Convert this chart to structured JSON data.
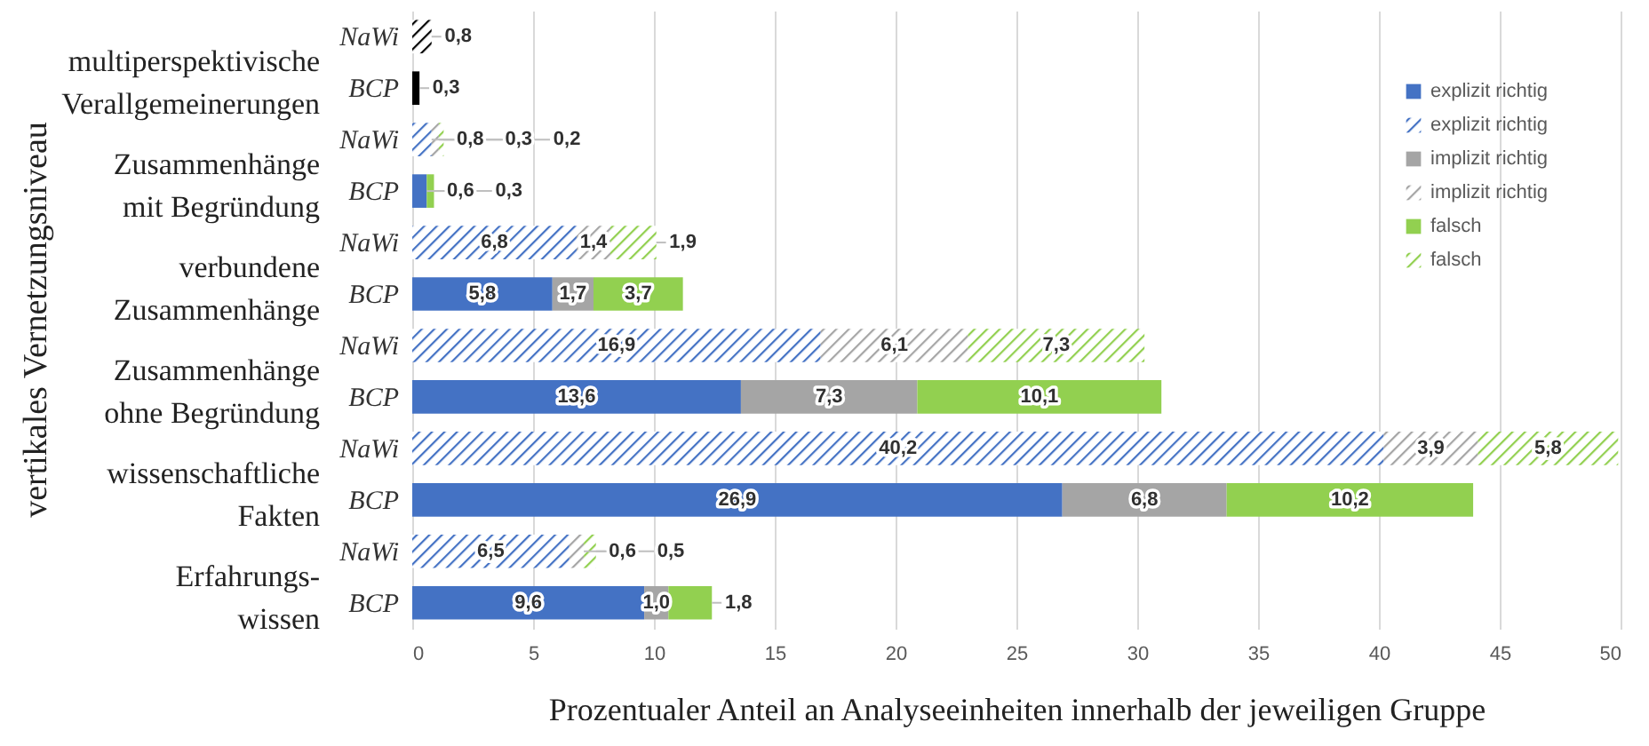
{
  "chart_data": {
    "type": "bar",
    "orientation": "horizontal",
    "stacked": true,
    "xlabel": "Prozentualer Anteil an Analyseeinheiten innerhalb der jeweiligen Gruppe",
    "annotations": [
      "multiperspektivische\nVerallgemeinerungen",
      "Zusammenhänge\nmit Begründung",
      "verbundene\nZusammenhänge",
      "Zusammenhänge\nohne Begründung",
      "wissenschaftliche\nFakten",
      "Erfahrungs-\nwissen",
      "vertikales Vernetzungsniveau"
    ],
    "categories": [
      "NaWi",
      "BCP",
      "NaWi",
      "BCP",
      "NaWi",
      "BCP",
      "NaWi",
      "BCP",
      "NaWi",
      "BCP",
      "NaWi",
      "BCP"
    ],
    "xlim": [
      0,
      50
    ],
    "xticks": [
      0,
      5,
      10,
      15,
      20,
      25,
      30,
      35,
      40,
      45,
      50
    ],
    "grid": "x",
    "legend": "top right",
    "series": [
      {
        "name": "explizit richtig",
        "color": "#4472c4",
        "values": [
          null,
          null,
          null,
          0.6,
          null,
          5.8,
          null,
          13.6,
          null,
          26.9,
          null,
          9.6
        ],
        "value_labels": [
          null,
          null,
          null,
          "0,6",
          null,
          "5,8",
          null,
          "13,6",
          null,
          "26,9",
          null,
          "9,6"
        ]
      },
      {
        "name": "explizit richtig",
        "color": "#4472c4",
        "values": [
          null,
          null,
          0.8,
          null,
          6.8,
          null,
          16.9,
          null,
          40.2,
          null,
          6.5,
          null
        ],
        "value_labels": [
          null,
          null,
          "0,8",
          null,
          "6,8",
          null,
          "16,9",
          null,
          "40,2",
          null,
          "6,5",
          null
        ]
      },
      {
        "name": "implizit richtig",
        "color": "#a5a5a5",
        "values": [
          null,
          null,
          null,
          null,
          null,
          1.7,
          null,
          7.3,
          null,
          6.8,
          null,
          1.0
        ],
        "value_labels": [
          null,
          null,
          null,
          null,
          null,
          "1,7",
          null,
          "7,3",
          null,
          "6,8",
          null,
          "1,0"
        ]
      },
      {
        "name": "implizit richtig",
        "color": "#a5a5a5",
        "values": [
          null,
          null,
          0.3,
          null,
          1.4,
          null,
          6.1,
          null,
          3.9,
          null,
          0.6,
          null
        ],
        "value_labels": [
          null,
          null,
          "0,3",
          null,
          "1,4",
          null,
          "6,1",
          null,
          "3,9",
          null,
          "0,6",
          null
        ]
      },
      {
        "name": "falsch",
        "color": "#92d050",
        "values": [
          null,
          null,
          null,
          0.3,
          null,
          3.7,
          null,
          10.1,
          null,
          10.2,
          null,
          1.8
        ],
        "value_labels": [
          null,
          null,
          null,
          "0,3",
          null,
          "3,7",
          null,
          "10,1",
          null,
          "10,2",
          null,
          "1,8"
        ]
      },
      {
        "name": "falsch",
        "color": "#92d050",
        "values": [
          null,
          null,
          0.2,
          null,
          1.9,
          null,
          7.3,
          null,
          5.8,
          null,
          0.5,
          null
        ],
        "value_labels": [
          null,
          null,
          "0,2",
          null,
          "1,9",
          null,
          "7,3",
          null,
          "5,8",
          null,
          "0,5",
          null
        ]
      },
      {
        "color": "#000000",
        "values": [
          null,
          0.3,
          null,
          null,
          null,
          null,
          null,
          null,
          null,
          null,
          null,
          null
        ],
        "value_labels": [
          null,
          "0,3",
          null,
          null,
          null,
          null,
          null,
          null,
          null,
          null,
          null,
          null
        ]
      },
      {
        "color": "#000000",
        "values": [
          0.8,
          null,
          null,
          null,
          null,
          null,
          null,
          null,
          null,
          null,
          null,
          null
        ],
        "value_labels": [
          "0,8",
          null,
          null,
          null,
          null,
          null,
          null,
          null,
          null,
          null,
          null,
          null
        ]
      }
    ]
  }
}
